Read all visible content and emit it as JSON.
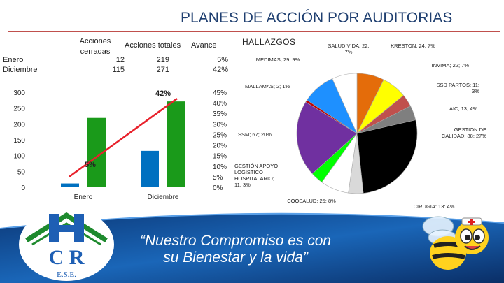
{
  "page": {
    "title": "PLANES DE ACCIÓN POR AUDITORIAS",
    "slogan_line1": "“Nuestro Compromiso es con",
    "slogan_line2": "su Bienestar y la vida”",
    "logo_text_line1": "C  R",
    "logo_text_line2": "E.S.E."
  },
  "summary_table": {
    "headers": [
      "Acciones cerradas",
      "Acciones totales",
      "Avance"
    ],
    "rows": [
      {
        "label": "Enero",
        "closed": "12",
        "total": "219",
        "progress": "5%"
      },
      {
        "label": "Diciembre",
        "closed": "115",
        "total": "271",
        "progress": "42%"
      }
    ]
  },
  "chart_data": [
    {
      "type": "bar",
      "categories": [
        "Enero",
        "Diciembre"
      ],
      "series": [
        {
          "values": [
            12,
            115
          ],
          "color": "#0070c0"
        },
        {
          "values": [
            219,
            271
          ],
          "color": "#1a9a1a"
        }
      ],
      "line_series": {
        "values": [
          5,
          42
        ],
        "color": "#e8212b",
        "labels": [
          "5%",
          "42%"
        ]
      },
      "ylim": [
        0,
        300
      ],
      "y_ticks": [
        "0",
        "50",
        "100",
        "150",
        "200",
        "250",
        "300"
      ],
      "y2lim": [
        0,
        45
      ],
      "y2_ticks": [
        "0%",
        "5%",
        "10%",
        "15%",
        "20%",
        "25%",
        "30%",
        "35%",
        "40%",
        "45%"
      ]
    },
    {
      "type": "pie",
      "title": "HALLAZGOS",
      "slices": [
        {
          "label": "KRESTON; 24; 7%",
          "value": 24,
          "color": "#e46c0a"
        },
        {
          "label": "INVIMA; 22; 7%",
          "value": 22,
          "color": "#ffff00"
        },
        {
          "label": "SSD PARTOS; 11; 3%",
          "value": 11,
          "color": "#c0504d"
        },
        {
          "label": "AIC; 13; 4%",
          "value": 13,
          "color": "#7f7f7f"
        },
        {
          "label": "GESTION DE CALIDAD; 88; 27%",
          "value": 88,
          "color": "#000000"
        },
        {
          "label": "CIRUGIA; 13; 4%",
          "value": 13,
          "color": "#d9d9d9"
        },
        {
          "label": "COOSALUD; 25; 8%",
          "value": 25,
          "color": "#ffffff"
        },
        {
          "label": "GESTIÓN APOYO LOGISTICO HOSPITALARIO; 11; 3%",
          "value": 11,
          "color": "#00ff00"
        },
        {
          "label": "SSM; 67; 20%",
          "value": 67,
          "color": "#7030a0"
        },
        {
          "label": "MALLAMAS; 2; 1%",
          "value": 2,
          "color": "#c00000"
        },
        {
          "label": "MEDIMAS; 29; 9%",
          "value": 29,
          "color": "#1e90ff"
        },
        {
          "label": "SALUD VIDA; 22; 7%",
          "value": 22,
          "color": "#ffffff"
        }
      ]
    }
  ]
}
